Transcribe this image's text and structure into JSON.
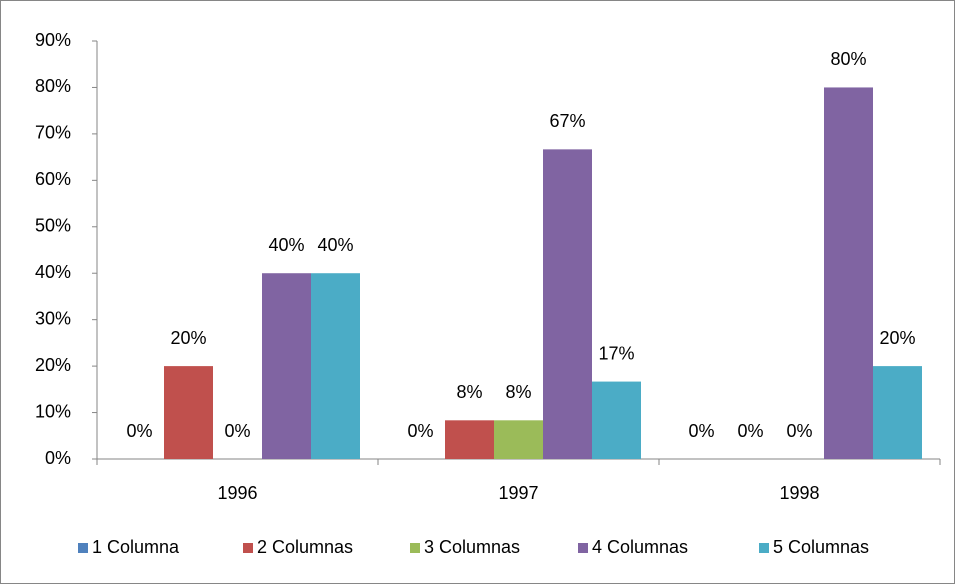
{
  "chart_data": {
    "type": "bar",
    "categories": [
      "1996",
      "1997",
      "1998"
    ],
    "series": [
      {
        "name": "1 Columna",
        "color": "#4f81bd",
        "values": [
          0,
          0,
          0
        ],
        "value_labels": [
          "0%",
          "0%",
          "0%"
        ]
      },
      {
        "name": "2 Columnas",
        "color": "#c0504d",
        "values": [
          20,
          8.33,
          0
        ],
        "value_labels": [
          "20%",
          "8%",
          "0%"
        ]
      },
      {
        "name": "3 Columnas",
        "color": "#9bbb59",
        "values": [
          0,
          8.33,
          0
        ],
        "value_labels": [
          "0%",
          "8%",
          "0%"
        ]
      },
      {
        "name": "4 Columnas",
        "color": "#8064a2",
        "values": [
          40,
          66.67,
          80
        ],
        "value_labels": [
          "40%",
          "67%",
          "80%"
        ]
      },
      {
        "name": "5 Columnas",
        "color": "#4bacc6",
        "values": [
          40,
          16.67,
          20
        ],
        "value_labels": [
          "40%",
          "17%",
          "20%"
        ]
      }
    ],
    "ylim": [
      0,
      90
    ],
    "yticks": [
      {
        "value": 0,
        "label": "0%"
      },
      {
        "value": 10,
        "label": "10%"
      },
      {
        "value": 20,
        "label": "20%"
      },
      {
        "value": 30,
        "label": "30%"
      },
      {
        "value": 40,
        "label": "40%"
      },
      {
        "value": 50,
        "label": "50%"
      },
      {
        "value": 60,
        "label": "60%"
      },
      {
        "value": 70,
        "label": "70%"
      },
      {
        "value": 80,
        "label": "80%"
      },
      {
        "value": 90,
        "label": "90%"
      }
    ],
    "grid": false,
    "legend": "bottom"
  }
}
